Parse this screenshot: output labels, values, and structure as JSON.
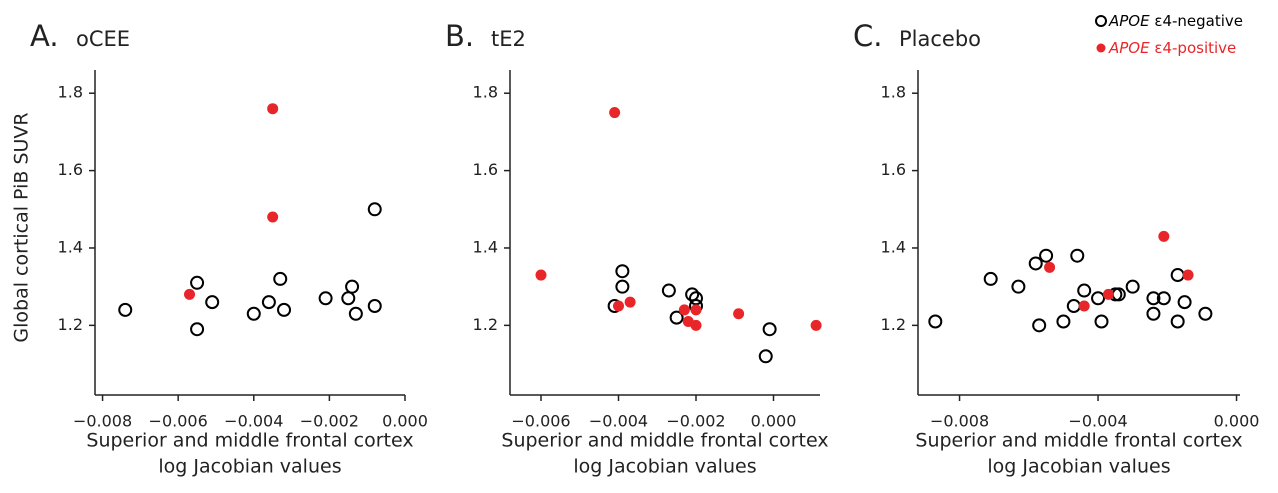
{
  "chart_data": [
    {
      "type": "scatter",
      "label": "A.",
      "title": "oCEE",
      "ylabel": "Global cortical PiB SUVR",
      "xlabel": [
        "Superior and middle frontal cortex",
        "log Jacobian values"
      ],
      "xlim": [
        -0.0082,
        0.0
      ],
      "ylim": [
        1.02,
        1.86
      ],
      "xticks": [
        {
          "value": -0.008,
          "label": "−0.008"
        },
        {
          "value": -0.006,
          "label": "−0.006"
        },
        {
          "value": -0.004,
          "label": "−0.004"
        },
        {
          "value": -0.002,
          "label": "−0.002"
        },
        {
          "value": 0.0,
          "label": "0.000"
        }
      ],
      "yticks": [
        1.2,
        1.4,
        1.6,
        1.8
      ],
      "series": [
        {
          "name": "APOE ε4-negative",
          "color": "#000000",
          "filled": false,
          "x": [
            -0.0074,
            -0.0055,
            -0.0055,
            -0.0051,
            -0.004,
            -0.0036,
            -0.0033,
            -0.0032,
            -0.0021,
            -0.0015,
            -0.0014,
            -0.0013,
            -0.0008,
            -0.0008
          ],
          "values": [
            1.24,
            1.31,
            1.19,
            1.26,
            1.23,
            1.26,
            1.32,
            1.24,
            1.27,
            1.27,
            1.3,
            1.23,
            1.25,
            1.5
          ]
        },
        {
          "name": "APOE ε4-positive",
          "color": "#e8262a",
          "filled": true,
          "x": [
            -0.0057,
            -0.0035,
            -0.0035
          ],
          "values": [
            1.28,
            1.76,
            1.48
          ]
        }
      ]
    },
    {
      "type": "scatter",
      "label": "B.",
      "title": "tE2",
      "xlabel": [
        "Superior and middle frontal cortex",
        "log Jacobian values"
      ],
      "xlim": [
        -0.0068,
        0.0012
      ],
      "ylim": [
        1.02,
        1.86
      ],
      "xticks": [
        {
          "value": -0.006,
          "label": "−0.006"
        },
        {
          "value": -0.004,
          "label": "−0.004"
        },
        {
          "value": -0.002,
          "label": "−0.002"
        },
        {
          "value": 0.0,
          "label": "0.000"
        }
      ],
      "yticks": [
        1.2,
        1.4,
        1.6,
        1.8
      ],
      "series": [
        {
          "name": "APOE ε4-negative",
          "color": "#000000",
          "filled": false,
          "x": [
            -0.0041,
            -0.0039,
            -0.0039,
            -0.0027,
            -0.0025,
            -0.0021,
            -0.002,
            -0.002,
            -0.0002,
            -0.0001
          ],
          "values": [
            1.25,
            1.34,
            1.3,
            1.29,
            1.22,
            1.28,
            1.27,
            1.25,
            1.12,
            1.19
          ]
        },
        {
          "name": "APOE ε4-positive",
          "color": "#e8262a",
          "filled": true,
          "x": [
            -0.006,
            -0.0041,
            -0.004,
            -0.0037,
            -0.0023,
            -0.0022,
            -0.002,
            -0.002,
            -0.0009,
            0.0011
          ],
          "values": [
            1.33,
            1.75,
            1.25,
            1.26,
            1.24,
            1.21,
            1.24,
            1.2,
            1.23,
            1.2
          ]
        }
      ]
    },
    {
      "type": "scatter",
      "label": "C.",
      "title": "Placebo",
      "legend": "upper right",
      "xlabel": [
        "Superior and middle frontal cortex",
        "log Jacobian values"
      ],
      "xlim": [
        -0.0092,
        0.0001
      ],
      "ylim": [
        1.02,
        1.86
      ],
      "xticks": [
        {
          "value": -0.008,
          "label": "−0.008"
        },
        {
          "value": -0.004,
          "label": "−0.004"
        },
        {
          "value": 0.0,
          "label": "0.000"
        }
      ],
      "yticks": [
        1.2,
        1.4,
        1.6,
        1.8
      ],
      "series": [
        {
          "name": "APOE ε4-negative",
          "color": "#000000",
          "filled": false,
          "x": [
            -0.0087,
            -0.0071,
            -0.0063,
            -0.0058,
            -0.0055,
            -0.0057,
            -0.0046,
            -0.005,
            -0.0047,
            -0.0044,
            -0.004,
            -0.0039,
            -0.0035,
            -0.0034,
            -0.003,
            -0.0024,
            -0.0024,
            -0.0021,
            -0.0017,
            -0.0017,
            -0.0015,
            -0.0009
          ],
          "values": [
            1.21,
            1.32,
            1.3,
            1.36,
            1.38,
            1.2,
            1.38,
            1.21,
            1.25,
            1.29,
            1.27,
            1.21,
            1.28,
            1.28,
            1.3,
            1.27,
            1.23,
            1.27,
            1.21,
            1.33,
            1.26,
            1.23
          ]
        },
        {
          "name": "APOE ε4-positive",
          "color": "#e8262a",
          "filled": true,
          "x": [
            -0.0054,
            -0.0044,
            -0.0037,
            -0.0021,
            -0.0014
          ],
          "values": [
            1.35,
            1.25,
            1.28,
            1.43,
            1.33
          ]
        }
      ]
    }
  ]
}
